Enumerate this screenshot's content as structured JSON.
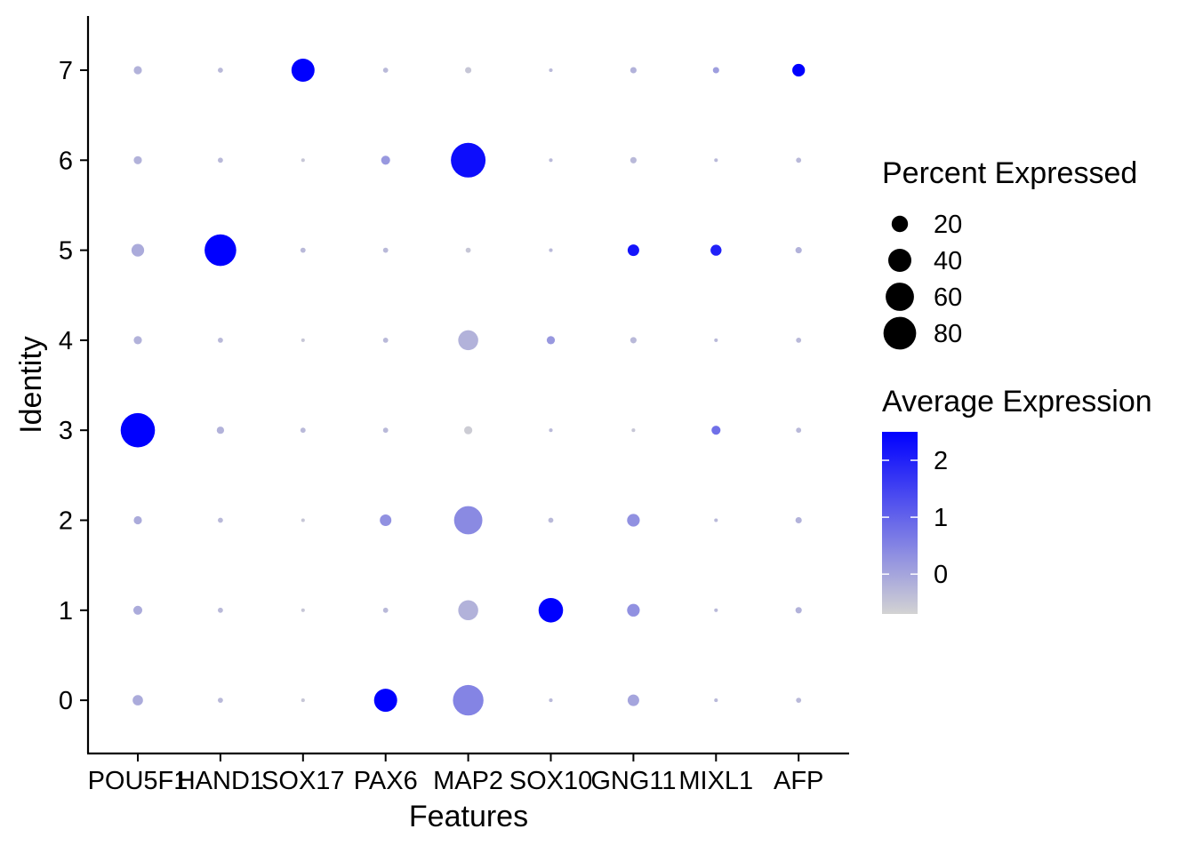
{
  "chart_data": {
    "type": "scatter",
    "subtype": "dot-plot",
    "xlabel": "Features",
    "ylabel": "Identity",
    "features": [
      "POU5F1",
      "HAND1",
      "SOX17",
      "PAX6",
      "MAP2",
      "SOX10",
      "GNG11",
      "MIXL1",
      "AFP"
    ],
    "identities": [
      "0",
      "1",
      "2",
      "3",
      "4",
      "5",
      "6",
      "7"
    ],
    "grid": false,
    "size_legend": {
      "title": "Percent Expressed",
      "breaks": [
        20,
        40,
        60,
        80
      ],
      "labels": [
        "20",
        "40",
        "60",
        "80"
      ],
      "range": [
        0,
        90
      ]
    },
    "color_legend": {
      "title": "Average Expression",
      "breaks": [
        0,
        1,
        2
      ],
      "labels": [
        "0",
        "1",
        "2"
      ],
      "range": [
        -0.7,
        2.5
      ],
      "low_color": "#d3d3d3",
      "high_color": "#0000ff"
    },
    "points": [
      {
        "feature": "POU5F1",
        "identity": "0",
        "pct": 8,
        "avg": -0.1
      },
      {
        "feature": "HAND1",
        "identity": "0",
        "pct": 2,
        "avg": -0.3
      },
      {
        "feature": "SOX17",
        "identity": "0",
        "pct": 1,
        "avg": -0.5
      },
      {
        "feature": "PAX6",
        "identity": "0",
        "pct": 40,
        "avg": 2.5
      },
      {
        "feature": "MAP2",
        "identity": "0",
        "pct": 70,
        "avg": 0.5
      },
      {
        "feature": "SOX10",
        "identity": "0",
        "pct": 1,
        "avg": -0.3
      },
      {
        "feature": "GNG11",
        "identity": "0",
        "pct": 10,
        "avg": 0.0
      },
      {
        "feature": "MIXL1",
        "identity": "0",
        "pct": 1,
        "avg": -0.3
      },
      {
        "feature": "AFP",
        "identity": "0",
        "pct": 2,
        "avg": -0.3
      },
      {
        "feature": "POU5F1",
        "identity": "1",
        "pct": 6,
        "avg": -0.1
      },
      {
        "feature": "HAND1",
        "identity": "1",
        "pct": 2,
        "avg": -0.3
      },
      {
        "feature": "SOX17",
        "identity": "1",
        "pct": 1,
        "avg": -0.5
      },
      {
        "feature": "PAX6",
        "identity": "1",
        "pct": 2,
        "avg": -0.3
      },
      {
        "feature": "MAP2",
        "identity": "1",
        "pct": 30,
        "avg": -0.2
      },
      {
        "feature": "SOX10",
        "identity": "1",
        "pct": 45,
        "avg": 2.5
      },
      {
        "feature": "GNG11",
        "identity": "1",
        "pct": 12,
        "avg": 0.3
      },
      {
        "feature": "MIXL1",
        "identity": "1",
        "pct": 1,
        "avg": -0.3
      },
      {
        "feature": "AFP",
        "identity": "1",
        "pct": 3,
        "avg": -0.2
      },
      {
        "feature": "POU5F1",
        "identity": "2",
        "pct": 5,
        "avg": -0.1
      },
      {
        "feature": "HAND1",
        "identity": "2",
        "pct": 2,
        "avg": -0.3
      },
      {
        "feature": "SOX17",
        "identity": "2",
        "pct": 1,
        "avg": -0.5
      },
      {
        "feature": "PAX6",
        "identity": "2",
        "pct": 10,
        "avg": 0.3
      },
      {
        "feature": "MAP2",
        "identity": "2",
        "pct": 60,
        "avg": 0.4
      },
      {
        "feature": "SOX10",
        "identity": "2",
        "pct": 2,
        "avg": -0.3
      },
      {
        "feature": "GNG11",
        "identity": "2",
        "pct": 12,
        "avg": 0.3
      },
      {
        "feature": "MIXL1",
        "identity": "2",
        "pct": 1,
        "avg": -0.3
      },
      {
        "feature": "AFP",
        "identity": "2",
        "pct": 3,
        "avg": -0.2
      },
      {
        "feature": "POU5F1",
        "identity": "3",
        "pct": 88,
        "avg": 2.5
      },
      {
        "feature": "HAND1",
        "identity": "3",
        "pct": 4,
        "avg": -0.2
      },
      {
        "feature": "SOX17",
        "identity": "3",
        "pct": 2,
        "avg": -0.3
      },
      {
        "feature": "PAX6",
        "identity": "3",
        "pct": 2,
        "avg": -0.3
      },
      {
        "feature": "MAP2",
        "identity": "3",
        "pct": 5,
        "avg": -0.6
      },
      {
        "feature": "SOX10",
        "identity": "3",
        "pct": 1,
        "avg": -0.3
      },
      {
        "feature": "GNG11",
        "identity": "3",
        "pct": 1,
        "avg": -0.5
      },
      {
        "feature": "MIXL1",
        "identity": "3",
        "pct": 6,
        "avg": 0.8
      },
      {
        "feature": "AFP",
        "identity": "3",
        "pct": 2,
        "avg": -0.3
      },
      {
        "feature": "POU5F1",
        "identity": "4",
        "pct": 5,
        "avg": -0.2
      },
      {
        "feature": "HAND1",
        "identity": "4",
        "pct": 2,
        "avg": -0.3
      },
      {
        "feature": "SOX17",
        "identity": "4",
        "pct": 1,
        "avg": -0.5
      },
      {
        "feature": "PAX6",
        "identity": "4",
        "pct": 2,
        "avg": -0.3
      },
      {
        "feature": "MAP2",
        "identity": "4",
        "pct": 30,
        "avg": -0.2
      },
      {
        "feature": "SOX10",
        "identity": "4",
        "pct": 5,
        "avg": 0.2
      },
      {
        "feature": "GNG11",
        "identity": "4",
        "pct": 3,
        "avg": -0.3
      },
      {
        "feature": "MIXL1",
        "identity": "4",
        "pct": 1,
        "avg": -0.3
      },
      {
        "feature": "AFP",
        "identity": "4",
        "pct": 2,
        "avg": -0.3
      },
      {
        "feature": "POU5F1",
        "identity": "5",
        "pct": 12,
        "avg": -0.1
      },
      {
        "feature": "HAND1",
        "identity": "5",
        "pct": 75,
        "avg": 2.5
      },
      {
        "feature": "SOX17",
        "identity": "5",
        "pct": 2,
        "avg": -0.3
      },
      {
        "feature": "PAX6",
        "identity": "5",
        "pct": 2,
        "avg": -0.3
      },
      {
        "feature": "MAP2",
        "identity": "5",
        "pct": 2,
        "avg": -0.5
      },
      {
        "feature": "SOX10",
        "identity": "5",
        "pct": 1,
        "avg": -0.3
      },
      {
        "feature": "GNG11",
        "identity": "5",
        "pct": 10,
        "avg": 2.2
      },
      {
        "feature": "MIXL1",
        "identity": "5",
        "pct": 9,
        "avg": 2.0
      },
      {
        "feature": "AFP",
        "identity": "5",
        "pct": 3,
        "avg": -0.2
      },
      {
        "feature": "POU5F1",
        "identity": "6",
        "pct": 5,
        "avg": -0.2
      },
      {
        "feature": "HAND1",
        "identity": "6",
        "pct": 2,
        "avg": -0.3
      },
      {
        "feature": "SOX17",
        "identity": "6",
        "pct": 1,
        "avg": -0.5
      },
      {
        "feature": "PAX6",
        "identity": "6",
        "pct": 6,
        "avg": 0.2
      },
      {
        "feature": "MAP2",
        "identity": "6",
        "pct": 90,
        "avg": 2.3
      },
      {
        "feature": "SOX10",
        "identity": "6",
        "pct": 1,
        "avg": -0.3
      },
      {
        "feature": "GNG11",
        "identity": "6",
        "pct": 3,
        "avg": -0.3
      },
      {
        "feature": "MIXL1",
        "identity": "6",
        "pct": 1,
        "avg": -0.3
      },
      {
        "feature": "AFP",
        "identity": "6",
        "pct": 2,
        "avg": -0.3
      },
      {
        "feature": "POU5F1",
        "identity": "7",
        "pct": 5,
        "avg": -0.2
      },
      {
        "feature": "HAND1",
        "identity": "7",
        "pct": 2,
        "avg": -0.3
      },
      {
        "feature": "SOX17",
        "identity": "7",
        "pct": 40,
        "avg": 2.5
      },
      {
        "feature": "PAX6",
        "identity": "7",
        "pct": 2,
        "avg": -0.3
      },
      {
        "feature": "MAP2",
        "identity": "7",
        "pct": 3,
        "avg": -0.5
      },
      {
        "feature": "SOX10",
        "identity": "7",
        "pct": 1,
        "avg": -0.3
      },
      {
        "feature": "GNG11",
        "identity": "7",
        "pct": 3,
        "avg": -0.2
      },
      {
        "feature": "MIXL1",
        "identity": "7",
        "pct": 3,
        "avg": 0.1
      },
      {
        "feature": "AFP",
        "identity": "7",
        "pct": 12,
        "avg": 2.5
      }
    ]
  }
}
